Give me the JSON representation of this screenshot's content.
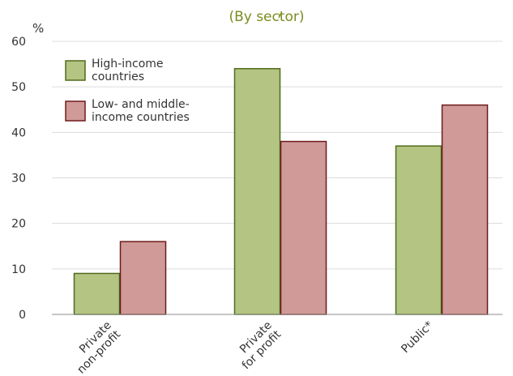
{
  "chart_data": {
    "type": "bar",
    "title": "(By sector)",
    "ylabel": "%",
    "ylim": [
      0,
      60
    ],
    "yticks": [
      0,
      10,
      20,
      30,
      40,
      50,
      60
    ],
    "grid": true,
    "legend_position": "top-left",
    "categories": [
      [
        "Private",
        "non-profit"
      ],
      [
        "Private",
        "for profit"
      ],
      [
        "Public*"
      ]
    ],
    "series": [
      {
        "name": [
          "High-income",
          "countries"
        ],
        "values": [
          9,
          54,
          37
        ],
        "fill": "#b4c482",
        "stroke": "#4f6b1a"
      },
      {
        "name": [
          "Low- and middle-",
          "income countries"
        ],
        "values": [
          16,
          38,
          46
        ],
        "fill": "#cf9a97",
        "stroke": "#6e1c1c"
      }
    ]
  }
}
